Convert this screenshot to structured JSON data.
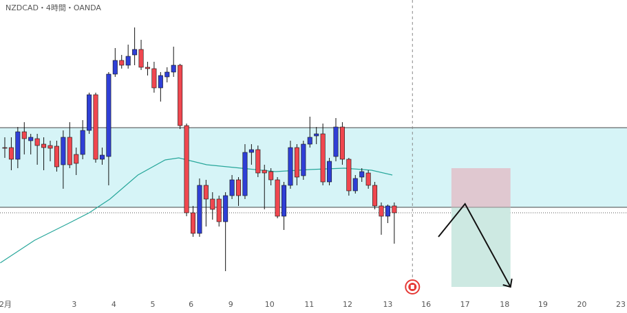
{
  "chart_data": {
    "type": "candlestick",
    "title": "NZDCAD・4時間・OANDA",
    "up_color": "#2f3fd6",
    "down_color": "#f0474f",
    "open": [
      241,
      241,
      224,
      264,
      251,
      254,
      246,
      244,
      243,
      216,
      256,
      231,
      231,
      266,
      318,
      224,
      228,
      348,
      368,
      361,
      376,
      384,
      358,
      356,
      328,
      344,
      351,
      361,
      273,
      146,
      116,
      186,
      166,
      166,
      133,
      171,
      194,
      171,
      234,
      238,
      208,
      206,
      194,
      141,
      186,
      241,
      200,
      246,
      258,
      261,
      191,
      228,
      271,
      224,
      178,
      198,
      204,
      186,
      156,
      141,
      156
    ],
    "high": [
      256,
      256,
      271,
      278,
      261,
      261,
      256,
      251,
      251,
      266,
      278,
      241,
      281,
      321,
      321,
      241,
      351,
      386,
      376,
      391,
      416,
      398,
      366,
      366,
      351,
      358,
      388,
      363,
      276,
      156,
      196,
      194,
      176,
      171,
      176,
      201,
      198,
      246,
      246,
      244,
      216,
      211,
      198,
      191,
      251,
      246,
      251,
      286,
      271,
      276,
      226,
      284,
      278,
      226,
      201,
      211,
      208,
      191,
      161,
      158,
      161
    ],
    "low": [
      226,
      208,
      211,
      231,
      231,
      216,
      208,
      221,
      206,
      181,
      211,
      201,
      224,
      261,
      219,
      216,
      186,
      344,
      356,
      356,
      361,
      354,
      346,
      321,
      308,
      336,
      344,
      268,
      141,
      111,
      111,
      126,
      136,
      126,
      61,
      166,
      156,
      166,
      216,
      198,
      151,
      186,
      138,
      121,
      181,
      186,
      194,
      241,
      246,
      186,
      186,
      221,
      216,
      171,
      174,
      191,
      181,
      151,
      114,
      131,
      101
    ],
    "close": [
      240,
      224,
      264,
      254,
      256,
      244,
      241,
      240,
      213,
      256,
      216,
      218,
      266,
      318,
      224,
      230,
      348,
      368,
      361,
      374,
      384,
      358,
      356,
      328,
      346,
      351,
      361,
      273,
      146,
      116,
      186,
      166,
      151,
      133,
      171,
      194,
      171,
      234,
      238,
      204,
      204,
      194,
      141,
      186,
      241,
      198,
      246,
      256,
      261,
      191,
      221,
      271,
      224,
      178,
      196,
      206,
      186,
      156,
      141,
      156,
      146
    ],
    "ma": {
      "color": "#26a69a",
      "x": [
        -0.7,
        4.6,
        9.9,
        13,
        16.2,
        20.5,
        24.7,
        26.8,
        31.1,
        36.4,
        41.7,
        47,
        52.3,
        56.5,
        59.7
      ],
      "values": [
        73,
        106,
        131,
        146,
        166,
        201,
        223,
        226,
        216,
        211,
        206,
        209,
        211,
        208,
        201
      ]
    },
    "zone": [
      154,
      270
    ],
    "zone_color": "#d6f4f7",
    "level": 154,
    "dotted_level": 146,
    "session_line_x": 62.8,
    "position": {
      "x": [
        68.8,
        77.9
      ],
      "entry": 154,
      "stop": 211,
      "target": 38
    },
    "arrow": {
      "x": [
        66.8,
        70.9,
        77.9
      ],
      "values": [
        111,
        159,
        38
      ]
    },
    "xlim": [
      -0.74,
      95.85
    ],
    "ylim": [
      0,
      456
    ],
    "xticks": [
      {
        "value": 0,
        "label": "2月"
      },
      {
        "value": 10.7,
        "label": "3"
      },
      {
        "value": 16.8,
        "label": "4"
      },
      {
        "value": 22.8,
        "label": "5"
      },
      {
        "value": 28.7,
        "label": "6"
      },
      {
        "value": 34.8,
        "label": "9"
      },
      {
        "value": 40.8,
        "label": "10"
      },
      {
        "value": 46.9,
        "label": "11"
      },
      {
        "value": 52.8,
        "label": "12"
      },
      {
        "value": 59,
        "label": "13"
      },
      {
        "value": 64.9,
        "label": "16"
      },
      {
        "value": 70.9,
        "label": "17"
      },
      {
        "value": 77,
        "label": "18"
      },
      {
        "value": 82.9,
        "label": "19"
      },
      {
        "value": 88.9,
        "label": "20"
      },
      {
        "value": 94.9,
        "label": "23"
      }
    ]
  }
}
